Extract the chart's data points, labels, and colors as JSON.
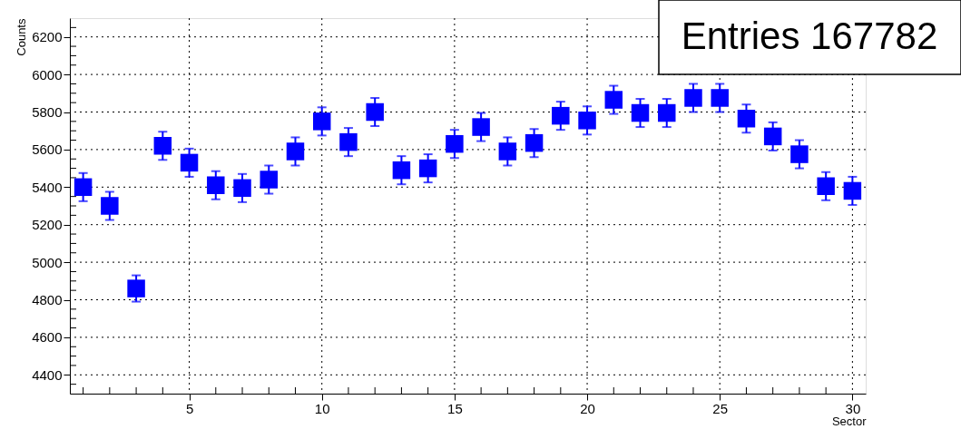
{
  "chart_data": {
    "type": "scatter",
    "xlabel": "Sector",
    "ylabel": "Counts",
    "annotations": [
      "Entries   167782"
    ],
    "x": [
      1,
      2,
      3,
      4,
      5,
      6,
      7,
      8,
      9,
      10,
      11,
      12,
      13,
      14,
      15,
      16,
      17,
      18,
      19,
      20,
      21,
      22,
      23,
      24,
      25,
      26,
      27,
      28,
      29,
      30
    ],
    "series": [
      {
        "color": "#0000ff",
        "values": [
          5400,
          5300,
          4860,
          5620,
          5530,
          5410,
          5395,
          5440,
          5590,
          5750,
          5640,
          5800,
          5490,
          5500,
          5630,
          5720,
          5590,
          5635,
          5780,
          5755,
          5865,
          5795,
          5795,
          5875,
          5875,
          5765,
          5670,
          5575,
          5405,
          5380
        ],
        "errors": [
          75,
          75,
          70,
          75,
          75,
          75,
          75,
          75,
          75,
          75,
          75,
          75,
          75,
          75,
          75,
          75,
          75,
          75,
          75,
          75,
          75,
          75,
          75,
          75,
          75,
          75,
          75,
          75,
          75,
          75
        ]
      }
    ],
    "xlim": [
      0.5,
      30.5
    ],
    "xticks": [
      {
        "value": 1,
        "label": null
      },
      {
        "value": 2,
        "label": null
      },
      {
        "value": 3,
        "label": null
      },
      {
        "value": 4,
        "label": null
      },
      5,
      {
        "value": 6,
        "label": null
      },
      {
        "value": 7,
        "label": null
      },
      {
        "value": 8,
        "label": null
      },
      {
        "value": 9,
        "label": null
      },
      10,
      {
        "value": 11,
        "label": null
      },
      {
        "value": 12,
        "label": null
      },
      {
        "value": 13,
        "label": null
      },
      {
        "value": 14,
        "label": null
      },
      15,
      {
        "value": 16,
        "label": null
      },
      {
        "value": 17,
        "label": null
      },
      {
        "value": 18,
        "label": null
      },
      {
        "value": 19,
        "label": null
      },
      20,
      {
        "value": 21,
        "label": null
      },
      {
        "value": 22,
        "label": null
      },
      {
        "value": 23,
        "label": null
      },
      {
        "value": 24,
        "label": null
      },
      25,
      {
        "value": 26,
        "label": null
      },
      {
        "value": 27,
        "label": null
      },
      {
        "value": 28,
        "label": null
      },
      {
        "value": 29,
        "label": null
      },
      30
    ],
    "ylim": [
      4300,
      6300
    ],
    "yticks": [
      {
        "value": 4350,
        "label": null
      },
      4400,
      {
        "value": 4450,
        "label": null
      },
      {
        "value": 4500,
        "label": null
      },
      {
        "value": 4550,
        "label": null
      },
      4600,
      {
        "value": 4650,
        "label": null
      },
      {
        "value": 4700,
        "label": null
      },
      {
        "value": 4750,
        "label": null
      },
      4800,
      {
        "value": 4850,
        "label": null
      },
      {
        "value": 4900,
        "label": null
      },
      {
        "value": 4950,
        "label": null
      },
      5000,
      {
        "value": 5050,
        "label": null
      },
      {
        "value": 5100,
        "label": null
      },
      {
        "value": 5150,
        "label": null
      },
      5200,
      {
        "value": 5250,
        "label": null
      },
      {
        "value": 5300,
        "label": null
      },
      {
        "value": 5350,
        "label": null
      },
      5400,
      {
        "value": 5450,
        "label": null
      },
      {
        "value": 5500,
        "label": null
      },
      {
        "value": 5550,
        "label": null
      },
      5600,
      {
        "value": 5650,
        "label": null
      },
      {
        "value": 5700,
        "label": null
      },
      {
        "value": 5750,
        "label": null
      },
      5800,
      {
        "value": 5850,
        "label": null
      },
      {
        "value": 5900,
        "label": null
      },
      {
        "value": 5950,
        "label": null
      },
      6000,
      {
        "value": 6050,
        "label": null
      },
      {
        "value": 6100,
        "label": null
      },
      {
        "value": 6150,
        "label": null
      },
      6200,
      {
        "value": 6250,
        "label": null
      }
    ],
    "grid": true,
    "marker": "square"
  }
}
